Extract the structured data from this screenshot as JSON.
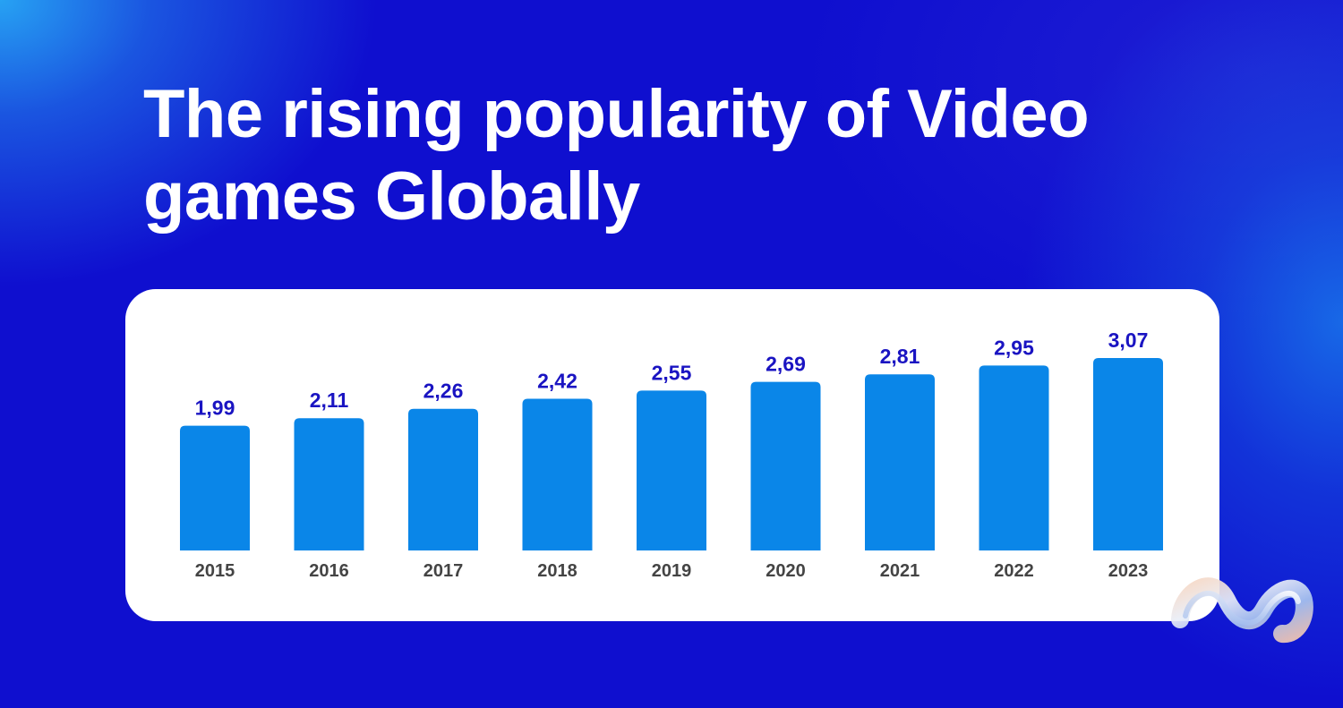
{
  "title": "The rising popularity of Video games Globally",
  "colors": {
    "background": "#0f0fcf",
    "bar": "#0a86e8",
    "value_label": "#1a14c2",
    "year_label": "#444444",
    "card": "#ffffff"
  },
  "chart_data": {
    "type": "bar",
    "categories": [
      "2015",
      "2016",
      "2017",
      "2018",
      "2019",
      "2020",
      "2021",
      "2022",
      "2023"
    ],
    "values": [
      1.99,
      2.11,
      2.26,
      2.42,
      2.55,
      2.69,
      2.81,
      2.95,
      3.07
    ],
    "value_labels": [
      "1,99",
      "2,11",
      "2,26",
      "2,42",
      "2,55",
      "2,69",
      "2,81",
      "2,95",
      "3,07"
    ],
    "title": "The rising popularity of Video games Globally",
    "xlabel": "",
    "ylabel": "",
    "ylim": [
      0,
      3.07
    ],
    "grid": false,
    "legend": "none"
  }
}
